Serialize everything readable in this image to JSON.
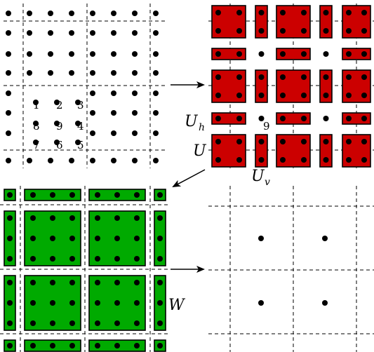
{
  "labels": {
    "u_h": "U",
    "u_h_sub": "h",
    "u": "U",
    "u_v": "U",
    "u_v_sub": "v",
    "w": "W"
  },
  "stencil_numbers": [
    "1",
    "2",
    "3",
    "8",
    "9",
    "4",
    "7",
    "6",
    "5"
  ],
  "center_label": "9",
  "colors": {
    "red": "#cc0000",
    "green": "#00aa00"
  }
}
